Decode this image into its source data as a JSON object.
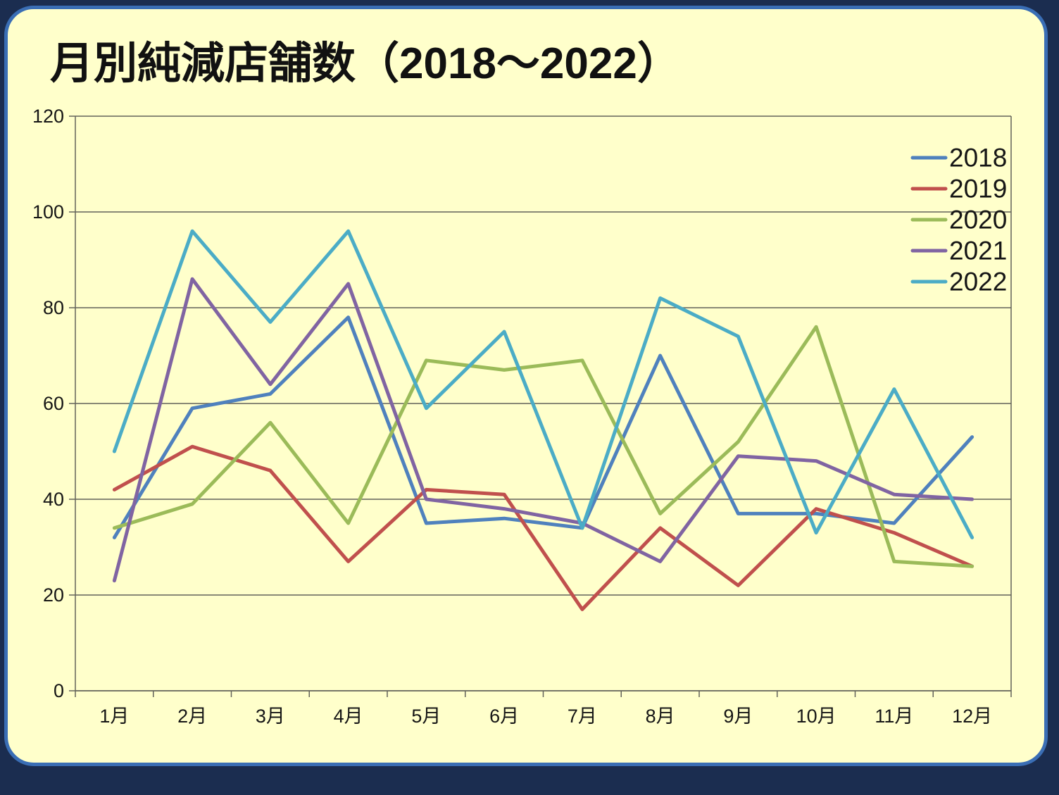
{
  "page": {
    "title": "月別純減店舗数（2018～2022）"
  },
  "chart_data": {
    "type": "line",
    "title": "月別純減店舗数（2018～2022）",
    "categories": [
      "1月",
      "2月",
      "3月",
      "4月",
      "5月",
      "6月",
      "7月",
      "8月",
      "9月",
      "10月",
      "11月",
      "12月"
    ],
    "series": [
      {
        "name": "2018",
        "color": "#4F81BD",
        "values": [
          32,
          59,
          62,
          78,
          35,
          36,
          34,
          70,
          37,
          37,
          35,
          53
        ]
      },
      {
        "name": "2019",
        "color": "#C0504D",
        "values": [
          42,
          51,
          46,
          27,
          42,
          41,
          17,
          34,
          22,
          38,
          33,
          26
        ]
      },
      {
        "name": "2020",
        "color": "#9BBB59",
        "values": [
          34,
          39,
          56,
          35,
          69,
          67,
          69,
          37,
          52,
          76,
          27,
          26
        ]
      },
      {
        "name": "2021",
        "color": "#8064A2",
        "values": [
          23,
          86,
          64,
          85,
          40,
          38,
          35,
          27,
          49,
          48,
          41,
          40
        ]
      },
      {
        "name": "2022",
        "color": "#4BACC6",
        "values": [
          50,
          96,
          77,
          96,
          59,
          75,
          34,
          82,
          74,
          33,
          63,
          32
        ]
      }
    ],
    "xlabel": "",
    "ylabel": "",
    "ylim": [
      0,
      120
    ],
    "yticks": [
      0,
      20,
      40,
      60,
      80,
      100,
      120
    ],
    "grid": true,
    "legend_position": "top-right",
    "legend_labels": [
      "2018",
      "2019",
      "2020",
      "2021",
      "2022"
    ]
  },
  "style": {
    "card_background": "#ffffcb",
    "card_border": "#3a6eb5",
    "page_background": "#1b2d50",
    "grid_color": "#62625a",
    "text_color": "#161616"
  }
}
